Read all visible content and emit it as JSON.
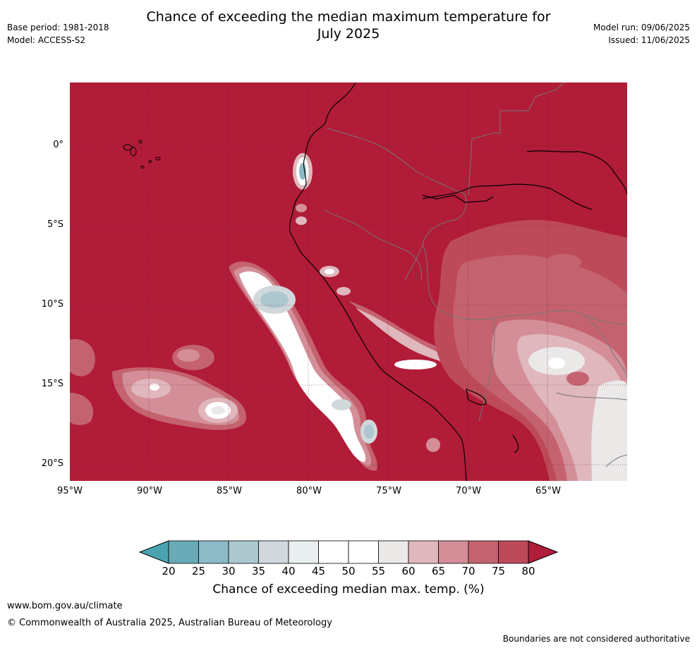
{
  "title_line1": "Chance of exceeding the median maximum temperature for",
  "title_line2": "July 2025",
  "base_period": "Base period: 1981-2018",
  "model": "Model: ACCESS-S2",
  "model_run": "Model run: 09/06/2025",
  "issued": "Issued: 11/06/2025",
  "lat_labels": [
    "0°",
    "5°S",
    "10°S",
    "15°S",
    "20°S"
  ],
  "lon_labels": [
    "95°W",
    "90°W",
    "85°W",
    "80°W",
    "75°W",
    "70°W",
    "65°W"
  ],
  "colorbar": {
    "ticks": [
      "20",
      "25",
      "30",
      "35",
      "40",
      "45",
      "50",
      "55",
      "60",
      "65",
      "70",
      "75",
      "80"
    ],
    "colors": [
      "#68aab7",
      "#8cbac6",
      "#acc8ce",
      "#d1d8db",
      "#e9eef0",
      "#ffffff",
      "#ffffff",
      "#ebe8e8",
      "#dfb7bd",
      "#d38e97",
      "#c4636f",
      "#bd4a58"
    ],
    "under_color": "#4aa3b0",
    "over_color": "#b11c38",
    "label": "Chance of exceeding median max. temp. (%)"
  },
  "website": "www.bom.gov.au/climate",
  "copyright": "© Commonwealth of Australia 2025, Australian Bureau of Meteorology",
  "disclaimer": "Boundaries are not considered authoritative"
}
